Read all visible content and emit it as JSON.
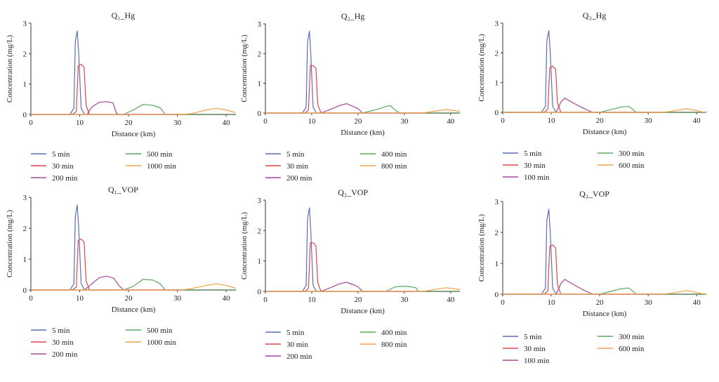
{
  "chart_data": [
    {
      "type": "line",
      "title": "Q₁_Hg",
      "xlabel": "Distance (km)",
      "ylabel": "Concentration (mg/L)",
      "xlim": [
        0,
        42
      ],
      "ylim": [
        0,
        3
      ],
      "xticks": [
        "0",
        "10",
        "20",
        "30",
        "40"
      ],
      "yticks": [
        "0",
        "1",
        "2",
        "3"
      ],
      "grid": false,
      "legend_position": "bottom",
      "series": [
        {
          "name": "5 min",
          "color": "#5b6fb5",
          "x": [
            0,
            8,
            8.8,
            9.1,
            9.5,
            9.8,
            10.3,
            11,
            42
          ],
          "y": [
            0,
            0,
            0.2,
            2.4,
            2.75,
            2.0,
            0.2,
            0,
            0
          ]
        },
        {
          "name": "30 min",
          "color": "#e0474c",
          "x": [
            0,
            8.5,
            9.3,
            9.7,
            10.3,
            10.9,
            11.3,
            12,
            42
          ],
          "y": [
            0,
            0,
            0.1,
            1.6,
            1.65,
            1.55,
            0.3,
            0,
            0
          ]
        },
        {
          "name": "200 min",
          "color": "#a8469a",
          "x": [
            0,
            11.5,
            12.5,
            14,
            15.5,
            16.8,
            17.5,
            18,
            42
          ],
          "y": [
            0,
            0,
            0.25,
            0.4,
            0.42,
            0.38,
            0.05,
            0,
            0
          ]
        },
        {
          "name": "500 min",
          "color": "#5aa95e",
          "x": [
            0,
            19,
            21,
            23,
            25,
            26.5,
            27.5,
            42
          ],
          "y": [
            0,
            0,
            0.15,
            0.33,
            0.3,
            0.22,
            0,
            0
          ]
        },
        {
          "name": "1000 min",
          "color": "#f5a04a",
          "x": [
            0,
            31,
            33,
            36,
            38,
            40,
            41.5,
            42
          ],
          "y": [
            0,
            0,
            0.03,
            0.15,
            0.2,
            0.15,
            0.08,
            0.06
          ]
        }
      ]
    },
    {
      "type": "line",
      "title": "Q₂_Hg",
      "xlabel": "Distance (km)",
      "ylabel": "Concentration (mg/L)",
      "xlim": [
        0,
        42
      ],
      "ylim": [
        0,
        3
      ],
      "xticks": [
        "0",
        "10",
        "20",
        "30",
        "40"
      ],
      "yticks": [
        "0",
        "1",
        "2",
        "3"
      ],
      "grid": false,
      "legend_position": "bottom",
      "series": [
        {
          "name": "5 min",
          "color": "#5b6fb5",
          "x": [
            0,
            8,
            8.8,
            9.1,
            9.5,
            9.8,
            10.3,
            11,
            42
          ],
          "y": [
            0,
            0,
            0.2,
            2.4,
            2.75,
            2.0,
            0.2,
            0,
            0
          ]
        },
        {
          "name": "30 min",
          "color": "#e0474c",
          "x": [
            0,
            8.5,
            9.3,
            9.7,
            10.3,
            10.9,
            11.3,
            12,
            42
          ],
          "y": [
            0,
            0,
            0.1,
            1.6,
            1.6,
            1.5,
            0.3,
            0,
            0
          ]
        },
        {
          "name": "200 min",
          "color": "#a8469a",
          "x": [
            0,
            12,
            14,
            16,
            17.5,
            19,
            20,
            21,
            42
          ],
          "y": [
            0,
            0,
            0.12,
            0.25,
            0.32,
            0.22,
            0.15,
            0,
            0
          ]
        },
        {
          "name": "400 min",
          "color": "#5aa95e",
          "x": [
            0,
            21,
            24,
            26,
            27,
            28,
            29,
            42
          ],
          "y": [
            0,
            0,
            0.12,
            0.22,
            0.25,
            0.1,
            0,
            0
          ]
        },
        {
          "name": "800 min",
          "color": "#f5a04a",
          "x": [
            0,
            34,
            36,
            39,
            41,
            42
          ],
          "y": [
            0,
            0,
            0.05,
            0.12,
            0.08,
            0.06
          ]
        }
      ]
    },
    {
      "type": "line",
      "title": "Q₃_Hg",
      "xlabel": "Distance (km)",
      "ylabel": "Concentration (mg/L)",
      "xlim": [
        0,
        42
      ],
      "ylim": [
        0,
        3
      ],
      "xticks": [
        "0",
        "10",
        "20",
        "30",
        "40"
      ],
      "yticks": [
        "0",
        "1",
        "2",
        "3"
      ],
      "grid": false,
      "legend_position": "bottom",
      "series": [
        {
          "name": "5 min",
          "color": "#5b6fb5",
          "x": [
            0,
            8,
            8.8,
            9.1,
            9.5,
            9.8,
            10.3,
            11,
            42
          ],
          "y": [
            0,
            0,
            0.2,
            2.4,
            2.75,
            2.0,
            0.2,
            0,
            0
          ]
        },
        {
          "name": "30 min",
          "color": "#e0474c",
          "x": [
            0,
            8.5,
            9.3,
            9.7,
            10.3,
            10.9,
            11.3,
            12,
            42
          ],
          "y": [
            0,
            0,
            0.1,
            1.5,
            1.55,
            1.45,
            0.3,
            0,
            0
          ]
        },
        {
          "name": "100 min",
          "color": "#a8469a",
          "x": [
            0,
            11,
            12,
            12.8,
            14.5,
            16.5,
            18.5,
            42
          ],
          "y": [
            0,
            0,
            0.35,
            0.48,
            0.32,
            0.15,
            0,
            0
          ]
        },
        {
          "name": "300 min",
          "color": "#5aa95e",
          "x": [
            0,
            20,
            22,
            24.5,
            26,
            27,
            27.5,
            42
          ],
          "y": [
            0,
            0,
            0.08,
            0.18,
            0.2,
            0.08,
            0,
            0
          ]
        },
        {
          "name": "600 min",
          "color": "#f5a04a",
          "x": [
            0,
            33,
            35,
            38,
            40,
            41,
            42
          ],
          "y": [
            0,
            0,
            0.04,
            0.12,
            0.06,
            0.02,
            0
          ]
        }
      ]
    },
    {
      "type": "line",
      "title": "Q₁_VOP",
      "xlabel": "Distance (km)",
      "ylabel": "Concentration (mg/L)",
      "xlim": [
        0,
        42
      ],
      "ylim": [
        0,
        3
      ],
      "xticks": [
        "0",
        "10",
        "20",
        "30",
        "40"
      ],
      "yticks": [
        "0",
        "1",
        "2",
        "3"
      ],
      "grid": false,
      "legend_position": "bottom",
      "series": [
        {
          "name": "5 min",
          "color": "#5b6fb5",
          "x": [
            0,
            8,
            8.8,
            9.1,
            9.5,
            9.8,
            10.3,
            11,
            42
          ],
          "y": [
            0,
            0,
            0.2,
            2.4,
            2.75,
            2.0,
            0.2,
            0,
            0
          ]
        },
        {
          "name": "30 min",
          "color": "#e0474c",
          "x": [
            0,
            8.5,
            9.3,
            9.7,
            10.3,
            10.9,
            11.3,
            12,
            42
          ],
          "y": [
            0,
            0,
            0.1,
            1.6,
            1.65,
            1.55,
            0.3,
            0,
            0
          ]
        },
        {
          "name": "200 min",
          "color": "#a8469a",
          "x": [
            0,
            11,
            12.5,
            14,
            15.5,
            17,
            18,
            19,
            42
          ],
          "y": [
            0,
            0,
            0.2,
            0.4,
            0.45,
            0.38,
            0.15,
            0,
            0
          ]
        },
        {
          "name": "500 min",
          "color": "#5aa95e",
          "x": [
            0,
            19,
            21,
            23,
            25,
            26.5,
            27.5,
            42
          ],
          "y": [
            0,
            0,
            0.12,
            0.35,
            0.32,
            0.2,
            0,
            0
          ]
        },
        {
          "name": "1000 min",
          "color": "#f5a04a",
          "x": [
            0,
            31,
            33,
            36,
            38,
            40,
            41.5,
            42
          ],
          "y": [
            0,
            0,
            0.05,
            0.15,
            0.2,
            0.15,
            0.08,
            0.06
          ]
        }
      ]
    },
    {
      "type": "line",
      "title": "Q₂_VOP",
      "xlabel": "Distance (km)",
      "ylabel": "Concentration (mg/L)",
      "xlim": [
        0,
        42
      ],
      "ylim": [
        0,
        3
      ],
      "xticks": [
        "0",
        "10",
        "20",
        "30",
        "40"
      ],
      "yticks": [
        "0",
        "1",
        "2",
        "3"
      ],
      "grid": false,
      "legend_position": "bottom",
      "series": [
        {
          "name": "5 min",
          "color": "#5b6fb5",
          "x": [
            0,
            8,
            8.8,
            9.1,
            9.5,
            9.8,
            10.3,
            11,
            42
          ],
          "y": [
            0,
            0,
            0.2,
            2.4,
            2.75,
            2.0,
            0.2,
            0,
            0
          ]
        },
        {
          "name": "30 min",
          "color": "#e0474c",
          "x": [
            0,
            8.5,
            9.3,
            9.7,
            10.3,
            10.9,
            11.3,
            12,
            42
          ],
          "y": [
            0,
            0,
            0.1,
            1.6,
            1.6,
            1.5,
            0.3,
            0,
            0
          ]
        },
        {
          "name": "200 min",
          "color": "#a8469a",
          "x": [
            0,
            12,
            14,
            16,
            17.5,
            19,
            20,
            21,
            42
          ],
          "y": [
            0,
            0,
            0.12,
            0.25,
            0.3,
            0.22,
            0.15,
            0,
            0
          ]
        },
        {
          "name": "400 min",
          "color": "#5aa95e",
          "x": [
            0,
            26,
            28,
            30,
            31.5,
            32.5,
            33,
            42
          ],
          "y": [
            0,
            0,
            0.15,
            0.17,
            0.15,
            0.12,
            0,
            0
          ]
        },
        {
          "name": "800 min",
          "color": "#f5a04a",
          "x": [
            0,
            34,
            36,
            39,
            41,
            42
          ],
          "y": [
            0,
            0,
            0.05,
            0.12,
            0.08,
            0.06
          ]
        }
      ]
    },
    {
      "type": "line",
      "title": "Q₃_VOP",
      "xlabel": "Distance (km)",
      "ylabel": "Concentration (mg/L)",
      "xlim": [
        0,
        42
      ],
      "ylim": [
        0,
        3
      ],
      "xticks": [
        "0",
        "10",
        "20",
        "30",
        "40"
      ],
      "yticks": [
        "0",
        "1",
        "2",
        "3"
      ],
      "grid": false,
      "legend_position": "bottom",
      "series": [
        {
          "name": "5 min",
          "color": "#5b6fb5",
          "x": [
            0,
            8,
            8.8,
            9.1,
            9.5,
            9.8,
            10.3,
            11,
            42
          ],
          "y": [
            0,
            0,
            0.2,
            2.4,
            2.75,
            2.0,
            0.2,
            0,
            0
          ]
        },
        {
          "name": "30 min",
          "color": "#e0474c",
          "x": [
            0,
            8.5,
            9.3,
            9.7,
            10.3,
            10.9,
            11.3,
            12,
            42
          ],
          "y": [
            0,
            0,
            0.1,
            1.55,
            1.6,
            1.5,
            0.3,
            0,
            0
          ]
        },
        {
          "name": "100 min",
          "color": "#a8469a",
          "x": [
            0,
            11,
            12,
            12.8,
            14.5,
            16.5,
            18.5,
            42
          ],
          "y": [
            0,
            0,
            0.35,
            0.48,
            0.32,
            0.15,
            0,
            0
          ]
        },
        {
          "name": "300 min",
          "color": "#5aa95e",
          "x": [
            0,
            20,
            22,
            24.5,
            26,
            27,
            27.5,
            42
          ],
          "y": [
            0,
            0,
            0.08,
            0.18,
            0.2,
            0.08,
            0,
            0
          ]
        },
        {
          "name": "600 min",
          "color": "#f5a04a",
          "x": [
            0,
            33,
            35,
            38,
            40,
            41,
            42
          ],
          "y": [
            0,
            0,
            0.04,
            0.12,
            0.06,
            0.02,
            0
          ]
        }
      ]
    }
  ]
}
